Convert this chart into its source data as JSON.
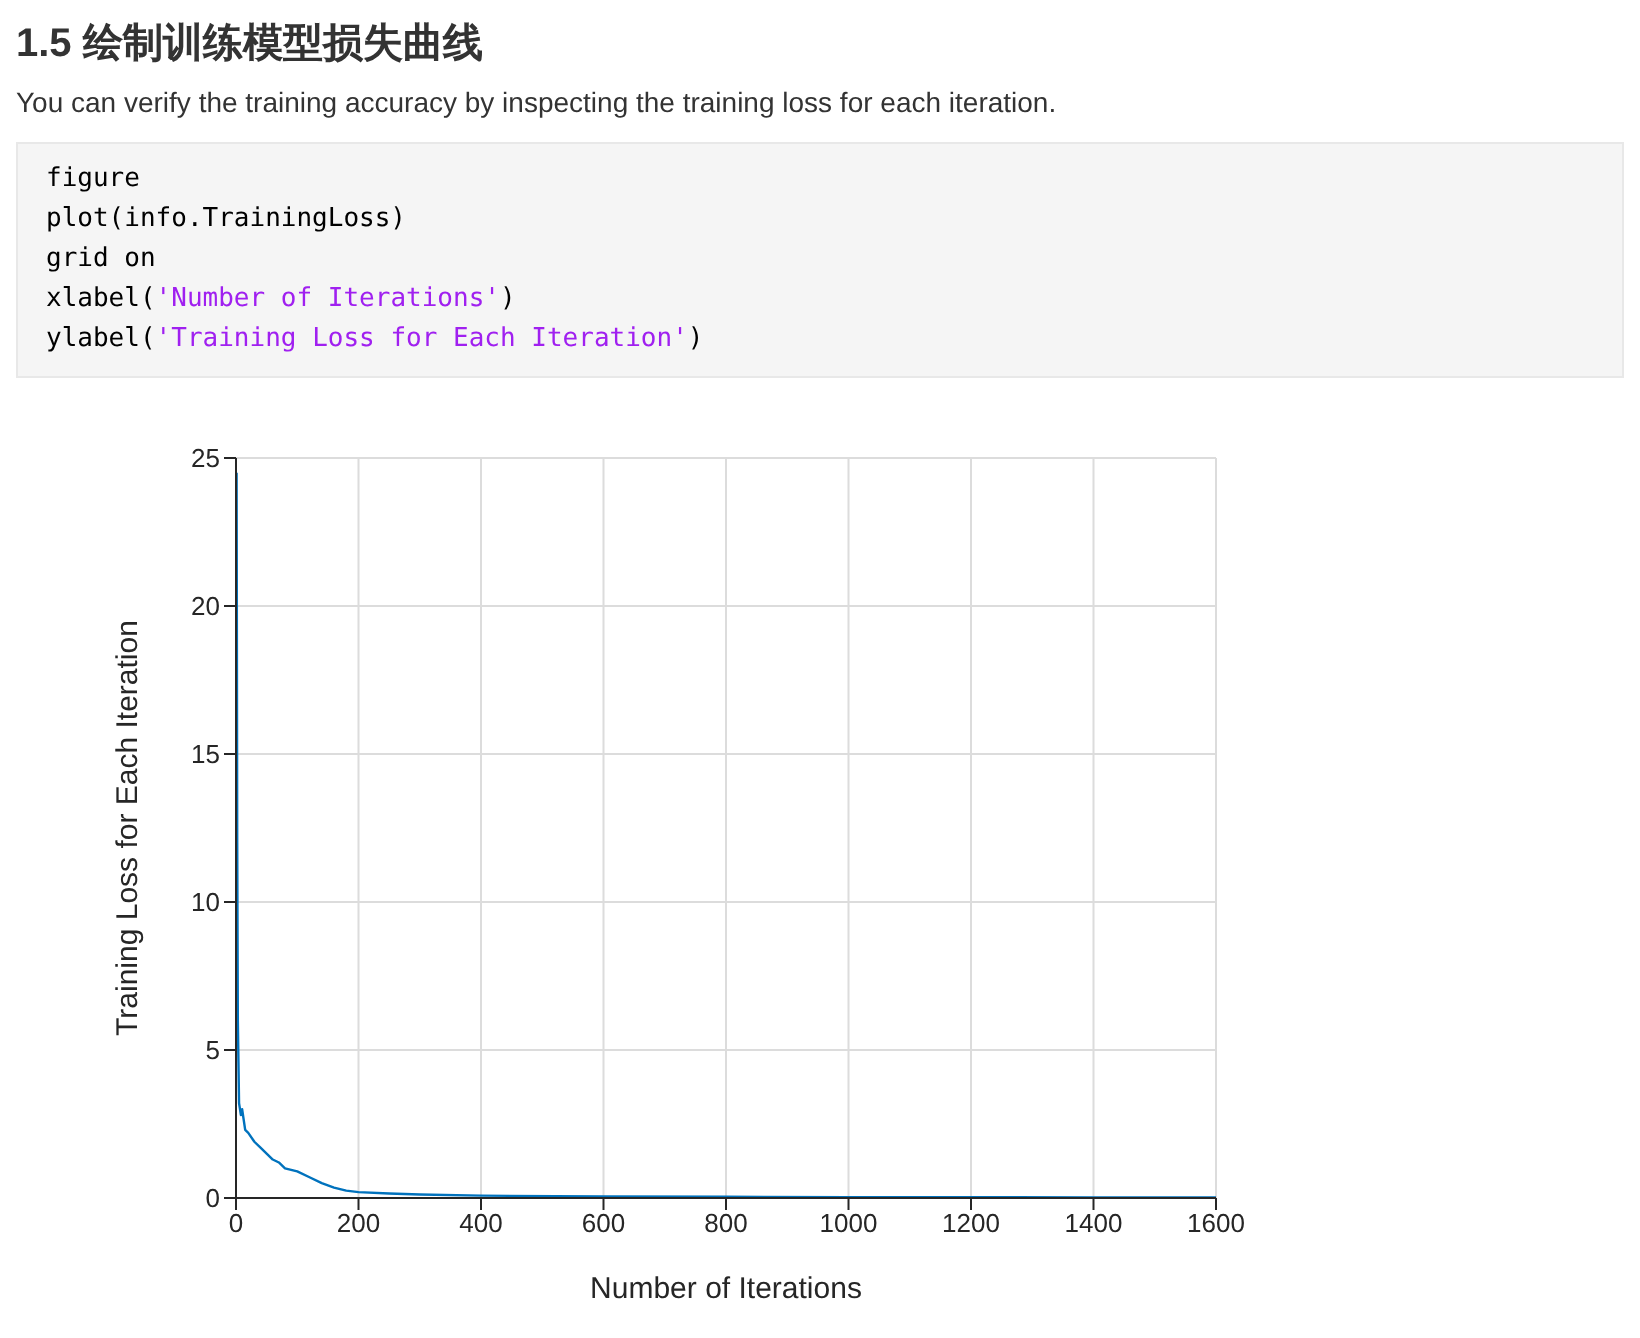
{
  "chart_data": {
    "type": "line",
    "title": "1.5 绘制训练模型损失曲线",
    "subtitle": "You can verify the training accuracy by inspecting the training loss for each iteration.",
    "annotations": [
      "figure",
      "plot(info.TrainingLoss)",
      "grid on",
      "xlabel('Number of Iterations')",
      "ylabel('Training Loss for Each Iteration')"
    ],
    "xlabel": "Number of Iterations",
    "ylabel": "Training Loss for Each Iteration",
    "x": [
      1,
      2,
      3,
      5,
      8,
      10,
      15,
      20,
      30,
      40,
      50,
      60,
      70,
      80,
      100,
      120,
      140,
      160,
      180,
      200,
      250,
      300,
      400,
      600,
      800,
      1000,
      1200,
      1400,
      1600
    ],
    "series": [
      {
        "color": "#0072bd",
        "values": [
          24.5,
          12,
          6,
          3.2,
          2.8,
          3.0,
          2.3,
          2.2,
          1.9,
          1.7,
          1.5,
          1.3,
          1.2,
          1.0,
          0.9,
          0.7,
          0.5,
          0.35,
          0.25,
          0.2,
          0.15,
          0.12,
          0.08,
          0.05,
          0.04,
          0.03,
          0.03,
          0.02,
          0.02
        ]
      }
    ],
    "xlim": [
      0,
      1600
    ],
    "xticks": [
      0,
      200,
      400,
      600,
      800,
      1000,
      1200,
      1400,
      1600
    ],
    "ylim": [
      0,
      25
    ],
    "yticks": [
      0,
      5,
      10,
      15,
      20,
      25
    ],
    "grid": true,
    "line_style": "solid"
  }
}
